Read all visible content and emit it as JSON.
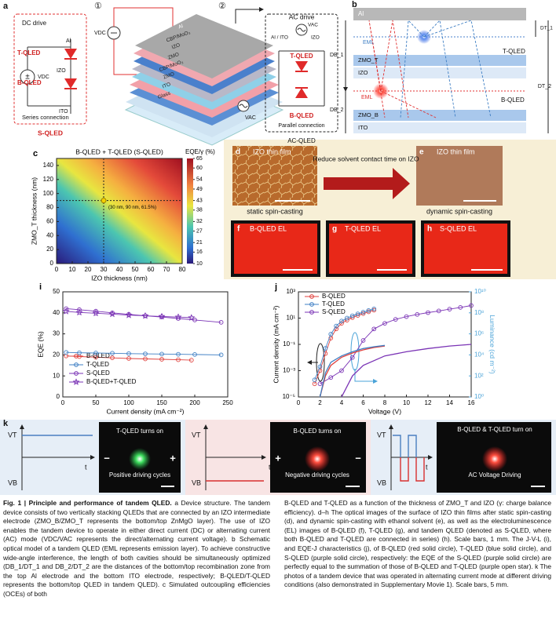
{
  "panel_a": {
    "label": "a",
    "step1": "①",
    "step2": "②",
    "dc_drive": "DC drive",
    "al": "Al",
    "t_qled": "T-QLED",
    "vdc": "VDC",
    "izo": "IZO",
    "b_qled": "B-QLED",
    "ito": "ITO",
    "series_connection": "Series connection",
    "s_qled": "S-QLED",
    "vdc_device": "VDC",
    "layers": [
      "Al",
      "CBP/MoO₃",
      "IZO",
      "ZMO",
      "CBP/MoO₃",
      "ZMO",
      "ITO",
      "Glass"
    ],
    "ac_drive": "AC drive",
    "ac_al_ito": "Al / ITO",
    "vac": "VAC",
    "ac_izo": "IZO",
    "ac_t_qled": "T-QLED",
    "ac_b_qled": "B-QLED",
    "parallel_connection": "Parallel connection",
    "ac_qled": "AC-QLED",
    "vac_device": "VAC"
  },
  "panel_b": {
    "label": "b",
    "al": "Al",
    "eml_top": "EML",
    "zmo_t": "ZMO_T",
    "izo": "IZO",
    "eml_bottom": "EML",
    "zmo_b": "ZMO_B",
    "ito": "ITO",
    "t_qled": "T-QLED",
    "b_qled": "B-QLED",
    "db1": "DB_1",
    "db2": "DB_2",
    "dt1": "DT_1",
    "dt2": "DT_2"
  },
  "panels_dh": {
    "d": "d",
    "d_title": "IZO thin film",
    "d_caption": "static spin-casting",
    "arrow_text": "Reduce solvent contact time on IZO",
    "e": "e",
    "e_title": "IZO thin film",
    "e_caption": "dynamic spin-casting",
    "f": "f",
    "f_title": "B-QLED EL",
    "g": "g",
    "g_title": "T-QLED EL",
    "h": "h",
    "h_title": "S-QLED EL"
  },
  "panel_k": {
    "label": "k",
    "cycles": [
      {
        "vt": "VT",
        "vb": "VB",
        "t": "t",
        "status": "T-QLED turns on",
        "mode": "Positive driving cycles",
        "left_sign": "−",
        "right_sign": "+"
      },
      {
        "vt": "VT",
        "vb": "VB",
        "t": "t",
        "status": "B-QLED turns on",
        "mode": "Negative driving cycles",
        "left_sign": "+",
        "right_sign": "−"
      },
      {
        "vt": "VT",
        "vb": "VB",
        "t": "t",
        "status": "B-QLED & T-QLED turn on",
        "mode": "AC Voltage Driving"
      }
    ]
  },
  "caption": {
    "title": "Fig. 1 | Principle and performance of tandem QLED.",
    "left": " a Device structure. The tandem device consists of two vertically stacking QLEDs that are connected by an IZO intermediate electrode (ZMO_B/ZMO_T represents the bottom/top ZnMgO layer). The use of IZO enables the tandem device to operate in either direct current (DC) or alternating current (AC) mode (VDC/VAC represents the direct/alternating current voltage). b Schematic optical model of a tandem QLED (EML represents emission layer). To achieve constructive wide-angle interference, the length of both cavities should be simultaneously optimized (DB_1/DT_1 and DB_2/DT_2 are the distances of the bottom/top recombination zone from the top Al electrode and the bottom ITO electrode, respectively; B-QLED/T-QLED represents the bottom/top QLED in tandem QLED). c Simulated outcoupling efficiencies (OCEs) of both",
    "right": "B-QLED and T-QLED as a function of the thickness of ZMO_T and IZO (γ: charge balance efficiency). d–h The optical images of the surface of IZO thin films after static spin-casting (d), and dynamic spin-casting with ethanol solvent (e), as well as the electroluminescence (EL) images of B-QLED (f), T-QLED (g), and tandem QLED (denoted as S-QLED, where both B-QLED and T-QLED are connected in series) (h). Scale bars, 1 mm. The J-V-L (i), and EQE-J characteristics (j), of B-QLED (red solid circle), T-QLED (blue solid circle), and S-QLED (purple solid circle), respectively: the EQE of the S-QLED (purple solid circle) are perfectly equal to the summation of those of B-QLED and T-QLED (purple open star). k The photos of a tandem device that was operated in alternating current mode at different driving conditions (also demonstrated in Supplementary Movie 1). Scale bars, 5 mm."
  },
  "chart_data": [
    {
      "type": "heatmap",
      "label": "c",
      "title": "B-QLED + T-QLED (S-QLED)",
      "colorbar_label": "EQE/γ (%)",
      "colorbar_lim": [
        10,
        65
      ],
      "colorbar_ticks": [
        65,
        60,
        54,
        49,
        43,
        38,
        32,
        27,
        21,
        16,
        10
      ],
      "xlabel": "IZO thickness (nm)",
      "ylabel": "ZMO_T thickness (nm)",
      "xlim": [
        0,
        80
      ],
      "xticks": [
        0,
        10,
        20,
        30,
        40,
        50,
        60,
        70,
        80
      ],
      "ylim": [
        0,
        150
      ],
      "yticks": [
        0,
        20,
        40,
        60,
        80,
        100,
        120,
        140
      ],
      "annotation": "(30 nm, 90 nm, 61.5%)",
      "point": {
        "x": 30,
        "y": 90
      }
    },
    {
      "type": "line",
      "label": "i",
      "xlabel": "Current density (mA cm⁻²)",
      "ylabel": "EQE (%)",
      "xlim": [
        0,
        250
      ],
      "xticks": [
        0,
        50,
        100,
        150,
        200,
        250
      ],
      "ylim": [
        0,
        50
      ],
      "yticks": [
        0,
        10,
        20,
        30,
        40,
        50
      ],
      "legend": "lower left",
      "series": [
        {
          "name": "B-QLED",
          "color": "#e0403c",
          "marker": "circle",
          "x": [
            5,
            25,
            50,
            75,
            100,
            125,
            150,
            175,
            195
          ],
          "values": [
            19.5,
            19.2,
            18.9,
            18.6,
            18.3,
            18.1,
            17.9,
            17.7,
            17.5
          ]
        },
        {
          "name": "T-QLED",
          "color": "#3f7fc4",
          "marker": "circle",
          "x": [
            5,
            25,
            50,
            75,
            100,
            125,
            150,
            175,
            200,
            240
          ],
          "values": [
            21.2,
            21,
            20.9,
            20.8,
            20.6,
            20.5,
            20.4,
            20.3,
            20.2,
            20
          ]
        },
        {
          "name": "S-QLED",
          "color": "#7a33b5",
          "marker": "circle",
          "x": [
            5,
            25,
            50,
            75,
            100,
            125,
            150,
            175,
            200,
            240
          ],
          "values": [
            42,
            41.5,
            40.8,
            40,
            39.3,
            38.6,
            38,
            37.3,
            36.6,
            35.5
          ]
        },
        {
          "name": "B-QLED+T-QLED",
          "color": "#7a33b5",
          "marker": "star",
          "x": [
            5,
            25,
            50,
            75,
            100,
            125,
            150,
            175,
            195
          ],
          "values": [
            40.7,
            40.2,
            39.8,
            39.4,
            38.9,
            38.6,
            38.3,
            38,
            37.7
          ]
        }
      ]
    },
    {
      "type": "line",
      "label": "j",
      "xlabel": "Voltage (V)",
      "ylabel": "Current density (mA cm⁻²)",
      "y2label": "Luminance (cd m⁻²)",
      "y2color": "#4aa3d8",
      "xlim": [
        0,
        16
      ],
      "xticks": [
        0,
        2,
        4,
        6,
        8,
        10,
        12,
        14,
        16
      ],
      "ylim": [
        1e-05,
        1000
      ],
      "ylog": true,
      "yticks": [
        {
          "value": 1e-05,
          "label": "10⁻⁵"
        },
        {
          "value": 0.001,
          "label": "10⁻³"
        },
        {
          "value": 0.1,
          "label": "10⁻¹"
        },
        {
          "value": 10,
          "label": "10¹"
        },
        {
          "value": 1000,
          "label": "10³"
        }
      ],
      "y2lim": [
        1,
        10000000000
      ],
      "y2log": true,
      "y2ticks": [
        {
          "value": 1,
          "label": "10⁰"
        },
        {
          "value": 100,
          "label": "10²"
        },
        {
          "value": 10000,
          "label": "10⁴"
        },
        {
          "value": 1000000,
          "label": "10⁶"
        },
        {
          "value": 100000000,
          "label": "10⁸"
        },
        {
          "value": 10000000000,
          "label": "10¹⁰"
        }
      ],
      "legend": "upper left",
      "series": [
        {
          "name": "B-QLED",
          "color": "#e0403c",
          "marker": "circle",
          "x": [
            1.5,
            2,
            2.5,
            3,
            3.5,
            4,
            4.5,
            5,
            5.5,
            6,
            6.5,
            7
          ],
          "values": [
            0.0001,
            0.001,
            0.02,
            0.3,
            1.5,
            4,
            7,
            11,
            16,
            22,
            30,
            40
          ]
        },
        {
          "name": "T-QLED",
          "color": "#3f7fc4",
          "marker": "circle",
          "x": [
            1.5,
            2,
            2.5,
            3,
            3.5,
            4,
            4.5,
            5,
            5.5,
            6,
            6.5,
            7
          ],
          "values": [
            0.0002,
            0.002,
            0.05,
            0.6,
            2.5,
            6,
            10,
            15,
            21,
            28,
            38,
            50
          ]
        },
        {
          "name": "S-QLED",
          "color": "#7a33b5",
          "marker": "circle",
          "x": [
            2,
            3,
            4,
            5,
            6,
            7,
            8,
            9,
            10,
            11,
            12,
            13,
            14,
            15,
            16
          ],
          "values": [
            0.0001,
            0.0003,
            0.001,
            0.01,
            0.2,
            1.5,
            4,
            8,
            13,
            19,
            26,
            35,
            48,
            65,
            90
          ]
        },
        {
          "color": "#e0403c",
          "axis": "y2",
          "x": [
            2,
            2.5,
            3,
            4,
            5,
            6,
            7,
            8
          ],
          "values": [
            1,
            100,
            1000,
            6000,
            15000,
            30000,
            50000,
            70000
          ]
        },
        {
          "color": "#3f7fc4",
          "axis": "y2",
          "x": [
            2,
            2.5,
            3,
            4,
            5,
            6,
            7,
            8
          ],
          "values": [
            1,
            200,
            2000,
            8000,
            20000,
            40000,
            60000,
            80000
          ]
        },
        {
          "color": "#7a33b5",
          "axis": "y2",
          "x": [
            4,
            5,
            6,
            8,
            10,
            12,
            14,
            16
          ],
          "values": [
            1,
            100,
            1000,
            8000,
            20000,
            40000,
            70000,
            100000
          ]
        }
      ]
    }
  ]
}
